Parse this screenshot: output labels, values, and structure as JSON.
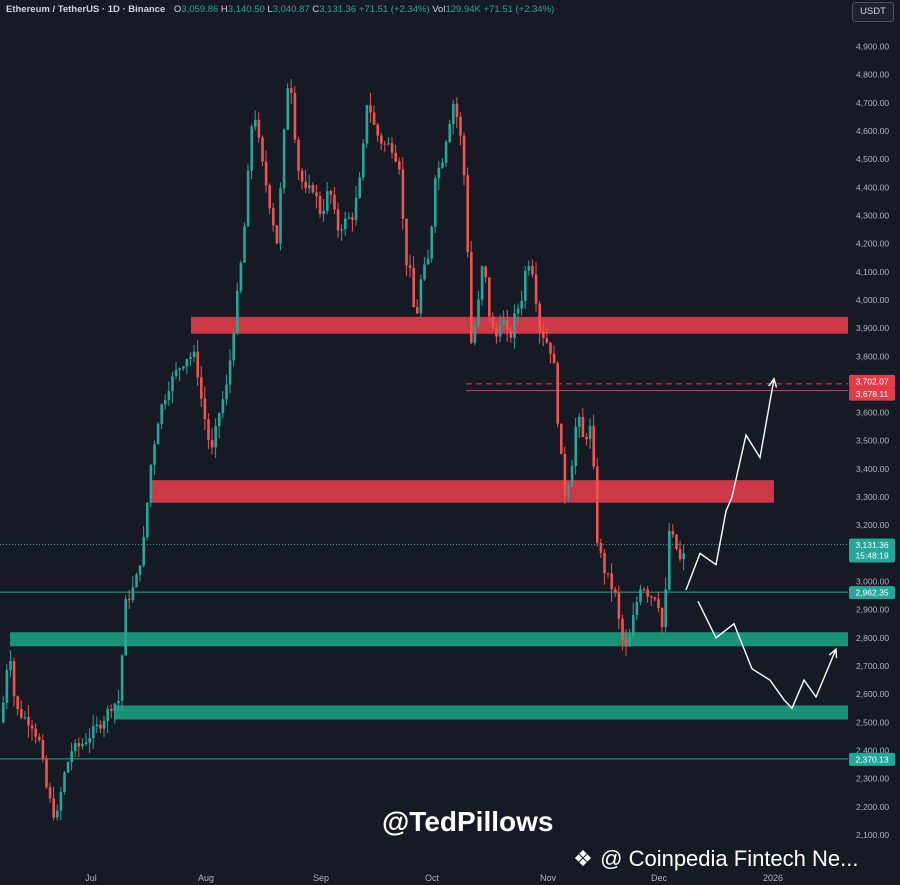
{
  "header": {
    "symbol": "Ethereum / TetherUS · 1D · Binance",
    "open_label": "O",
    "open": "3,059.86",
    "high_label": "H",
    "high": "3,140.50",
    "low_label": "L",
    "low": "3,040.87",
    "close_label": "C",
    "close": "3,131.36",
    "change": "+71.51 (+2.34%)",
    "vol_label": "Vol",
    "vol": "129.94K",
    "vol_change": "+71.51 (+2.34%)"
  },
  "currency_button": "USDT",
  "watermark": {
    "handle": "@TedPillows",
    "source": "@ Coinpedia Fintech Ne..."
  },
  "colors": {
    "up": "#26a69a",
    "down": "#ef5350",
    "background": "#161a25",
    "resistance": "#e03c4a",
    "support": "#1a9e80"
  },
  "chart_data": {
    "type": "candlestick",
    "title": "Ethereum / TetherUS · 1D · Binance",
    "x_ticks": [
      "Jul",
      "Aug",
      "Sep",
      "Oct",
      "Nov",
      "Dec",
      "2026"
    ],
    "y_ticks": [
      "4,900.00",
      "4,800.00",
      "4,700.00",
      "4,600.00",
      "4,500.00",
      "4,400.00",
      "4,300.00",
      "4,200.00",
      "4,100.00",
      "4,000.00",
      "3,900.00",
      "3,800.00",
      "3,700.00",
      "3,600.00",
      "3,500.00",
      "3,400.00",
      "3,300.00",
      "3,200.00",
      "3,000.00",
      "2,900.00",
      "2,800.00",
      "2,700.00",
      "2,600.00",
      "2,500.00",
      "2,400.00",
      "2,300.00",
      "2,200.00",
      "2,100.00"
    ],
    "y_range": [
      2050,
      4980
    ],
    "price_points": [
      [
        0,
        2500
      ],
      [
        8,
        2780
      ],
      [
        14,
        2550
      ],
      [
        22,
        2520
      ],
      [
        30,
        2500
      ],
      [
        38,
        2430
      ],
      [
        46,
        2250
      ],
      [
        55,
        2150
      ],
      [
        62,
        2300
      ],
      [
        70,
        2400
      ],
      [
        80,
        2420
      ],
      [
        90,
        2460
      ],
      [
        100,
        2500
      ],
      [
        110,
        2560
      ],
      [
        118,
        2580
      ],
      [
        124,
        2920
      ],
      [
        134,
        2990
      ],
      [
        142,
        3130
      ],
      [
        150,
        3430
      ],
      [
        158,
        3600
      ],
      [
        168,
        3700
      ],
      [
        176,
        3750
      ],
      [
        186,
        3800
      ],
      [
        194,
        3800
      ],
      [
        200,
        3650
      ],
      [
        210,
        3450
      ],
      [
        218,
        3600
      ],
      [
        226,
        3700
      ],
      [
        234,
        3950
      ],
      [
        242,
        4200
      ],
      [
        252,
        4700
      ],
      [
        260,
        4500
      ],
      [
        268,
        4350
      ],
      [
        276,
        4200
      ],
      [
        282,
        4550
      ],
      [
        288,
        4840
      ],
      [
        296,
        4480
      ],
      [
        304,
        4380
      ],
      [
        312,
        4400
      ],
      [
        320,
        4300
      ],
      [
        328,
        4400
      ],
      [
        336,
        4250
      ],
      [
        344,
        4280
      ],
      [
        352,
        4300
      ],
      [
        360,
        4450
      ],
      [
        366,
        4720
      ],
      [
        374,
        4600
      ],
      [
        382,
        4550
      ],
      [
        390,
        4550
      ],
      [
        398,
        4480
      ],
      [
        404,
        4150
      ],
      [
        410,
        4080
      ],
      [
        414,
        3900
      ],
      [
        420,
        4080
      ],
      [
        428,
        4150
      ],
      [
        434,
        4450
      ],
      [
        440,
        4480
      ],
      [
        446,
        4600
      ],
      [
        452,
        4700
      ],
      [
        458,
        4620
      ],
      [
        464,
        4400
      ],
      [
        470,
        3850
      ],
      [
        476,
        3950
      ],
      [
        482,
        4150
      ],
      [
        488,
        3950
      ],
      [
        494,
        3850
      ],
      [
        500,
        3950
      ],
      [
        508,
        3850
      ],
      [
        514,
        3950
      ],
      [
        520,
        4000
      ],
      [
        526,
        4150
      ],
      [
        532,
        4100
      ],
      [
        538,
        3900
      ],
      [
        546,
        3850
      ],
      [
        552,
        3800
      ],
      [
        558,
        3500
      ],
      [
        564,
        3300
      ],
      [
        570,
        3400
      ],
      [
        576,
        3600
      ],
      [
        582,
        3500
      ],
      [
        590,
        3550
      ],
      [
        596,
        3150
      ],
      [
        602,
        3050
      ],
      [
        608,
        3000
      ],
      [
        614,
        2950
      ],
      [
        620,
        2800
      ],
      [
        626,
        2750
      ],
      [
        632,
        2870
      ],
      [
        640,
        3000
      ],
      [
        648,
        2950
      ],
      [
        656,
        2950
      ],
      [
        662,
        2810
      ],
      [
        668,
        3180
      ],
      [
        674,
        3130
      ],
      [
        680,
        3060
      ],
      [
        686,
        3131
      ]
    ],
    "zones": [
      {
        "type": "resistance",
        "from": 3880,
        "to": 3940
      },
      {
        "type": "resistance",
        "from": 3280,
        "to": 3360
      },
      {
        "type": "support",
        "from": 2770,
        "to": 2820
      },
      {
        "type": "support",
        "from": 2510,
        "to": 2560
      }
    ],
    "levels": [
      {
        "value": 3702.07,
        "label": "3,702.07",
        "style": "dashed-red"
      },
      {
        "value": 3678.11,
        "label": "3,678.11",
        "style": "solid-red"
      },
      {
        "value": 3131.36,
        "label": "3,131.36",
        "sub": "15:48:19",
        "style": "current"
      },
      {
        "value": 2962.35,
        "label": "2,962.35",
        "style": "solid-green"
      },
      {
        "value": 2370.13,
        "label": "2,370.13",
        "style": "solid-green"
      }
    ],
    "projections": [
      {
        "name": "bullish",
        "points": [
          [
            686,
            2970
          ],
          [
            700,
            3100
          ],
          [
            716,
            3060
          ],
          [
            726,
            3250
          ],
          [
            732,
            3300
          ],
          [
            746,
            3520
          ],
          [
            760,
            3440
          ],
          [
            774,
            3720
          ]
        ]
      },
      {
        "name": "bearish",
        "points": [
          [
            698,
            2930
          ],
          [
            716,
            2800
          ],
          [
            734,
            2850
          ],
          [
            752,
            2690
          ],
          [
            770,
            2650
          ],
          [
            784,
            2580
          ],
          [
            792,
            2550
          ],
          [
            804,
            2650
          ],
          [
            816,
            2590
          ],
          [
            836,
            2760
          ]
        ]
      }
    ]
  }
}
